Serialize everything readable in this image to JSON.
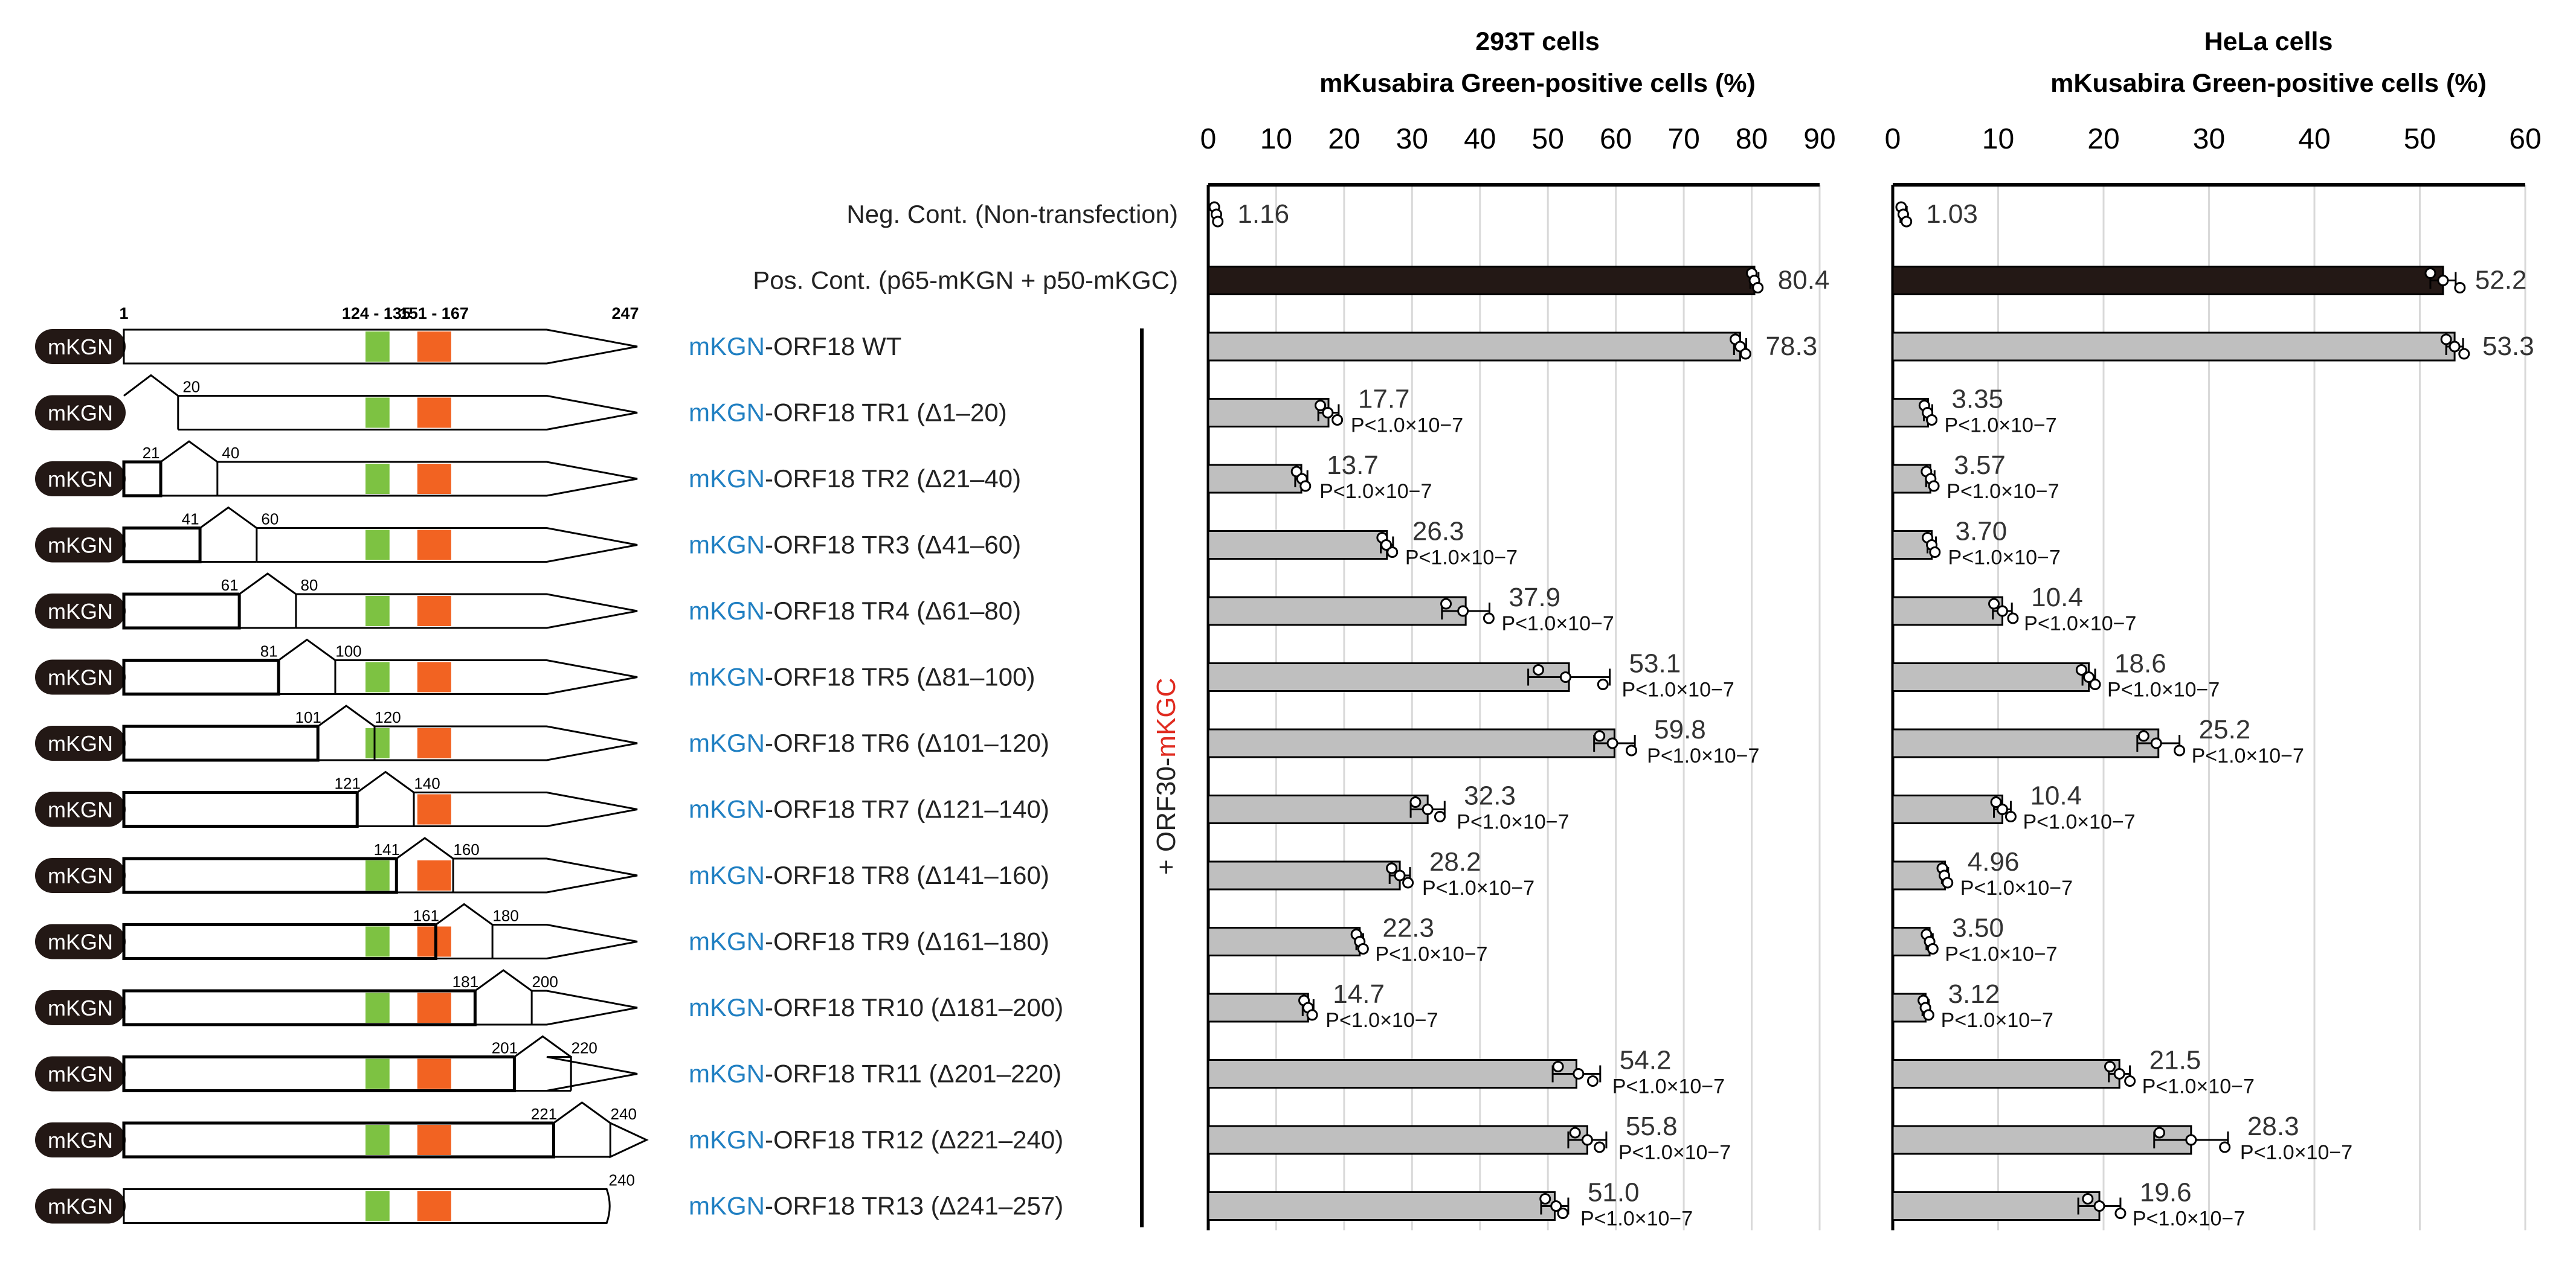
{
  "colors": {
    "construct_blue": "#1f7fc2",
    "mkgc_red": "#e02b20",
    "green_box": "#7dc242",
    "orange_box": "#f26322",
    "pos_bar": "#231815",
    "sample_bar": "#bfbfbf",
    "gridline": "#d9d9d9"
  },
  "row_labels": [
    "Neg. Cont. (Non-transfection)",
    "Pos. Cont. (p65-mKGN + p50-mKGC)"
  ],
  "constructs": [
    {
      "prefix": "mKGN",
      "suffix": "-ORF18 WT"
    },
    {
      "prefix": "mKGN",
      "suffix": "-ORF18 TR1 (Δ1–20)"
    },
    {
      "prefix": "mKGN",
      "suffix": "-ORF18 TR2 (Δ21–40)"
    },
    {
      "prefix": "mKGN",
      "suffix": "-ORF18 TR3 (Δ41–60)"
    },
    {
      "prefix": "mKGN",
      "suffix": "-ORF18 TR4 (Δ61–80)"
    },
    {
      "prefix": "mKGN",
      "suffix": "-ORF18 TR5 (Δ81–100)"
    },
    {
      "prefix": "mKGN",
      "suffix": "-ORF18 TR6 (Δ101–120)"
    },
    {
      "prefix": "mKGN",
      "suffix": "-ORF18 TR7 (Δ121–140)"
    },
    {
      "prefix": "mKGN",
      "suffix": "-ORF18 TR8 (Δ141–160)"
    },
    {
      "prefix": "mKGN",
      "suffix": "-ORF18 TR9 (Δ161–180)"
    },
    {
      "prefix": "mKGN",
      "suffix": "-ORF18 TR10 (Δ181–200)"
    },
    {
      "prefix": "mKGN",
      "suffix": "-ORF18 TR11 (Δ201–220)"
    },
    {
      "prefix": "mKGN",
      "suffix": "-ORF18 TR12 (Δ221–240)"
    },
    {
      "prefix": "mKGN",
      "suffix": "-ORF18 TR13 (Δ241–257)"
    }
  ],
  "cotransfection": {
    "prefix": "+ ORF30-",
    "suffix": "mKGC"
  },
  "schematic": {
    "tag_label": "mKGN",
    "wt_positions": {
      "start": "1",
      "green": "124 - 135",
      "orange": "151 - 167",
      "end": "247"
    },
    "deletions": [
      {
        "from": "",
        "to": "20"
      },
      {
        "from": "21",
        "to": "40"
      },
      {
        "from": "41",
        "to": "60"
      },
      {
        "from": "61",
        "to": "80"
      },
      {
        "from": "81",
        "to": "100"
      },
      {
        "from": "101",
        "to": "120"
      },
      {
        "from": "121",
        "to": "140"
      },
      {
        "from": "141",
        "to": "160"
      },
      {
        "from": "161",
        "to": "180"
      },
      {
        "from": "181",
        "to": "200"
      },
      {
        "from": "201",
        "to": "220"
      },
      {
        "from": "221",
        "to": "240"
      },
      {
        "from": "240",
        "to": ""
      }
    ]
  },
  "chart_data": [
    {
      "type": "bar",
      "orientation": "horizontal",
      "title": "293T cells",
      "subtitle": "mKusabira Green-positive cells (%)",
      "xlim": [
        0,
        90
      ],
      "ticks": [
        0,
        10,
        20,
        30,
        40,
        50,
        60,
        70,
        80,
        90
      ],
      "categories": [
        "Neg. Cont.",
        "Pos. Cont.",
        "WT",
        "TR1",
        "TR2",
        "TR3",
        "TR4",
        "TR5",
        "TR6",
        "TR7",
        "TR8",
        "TR9",
        "TR10",
        "TR11",
        "TR12",
        "TR13"
      ],
      "values": [
        1.16,
        80.4,
        78.3,
        17.7,
        13.7,
        26.3,
        37.9,
        53.1,
        59.8,
        32.3,
        28.2,
        22.3,
        14.7,
        54.2,
        55.8,
        51.0
      ],
      "value_labels": [
        "1.16",
        "80.4",
        "78.3",
        "17.7",
        "13.7",
        "26.3",
        "37.9",
        "53.1",
        "59.8",
        "32.3",
        "28.2",
        "22.3",
        "14.7",
        "54.2",
        "55.8",
        "51.0"
      ],
      "errors": [
        0.3,
        0.6,
        0.9,
        1.5,
        0.9,
        0.9,
        3.5,
        6.0,
        3.0,
        2.5,
        1.5,
        0.5,
        0.8,
        3.5,
        2.8,
        2.0
      ],
      "replicates": [
        [
          0.9,
          1.2,
          1.4
        ],
        [
          80.0,
          80.4,
          80.9
        ],
        [
          77.6,
          78.3,
          79.1
        ],
        [
          16.5,
          17.6,
          19.0
        ],
        [
          13.0,
          13.8,
          14.3
        ],
        [
          25.6,
          26.2,
          27.1
        ],
        [
          35.0,
          37.5,
          41.3
        ],
        [
          48.6,
          52.6,
          58.1
        ],
        [
          57.6,
          59.5,
          62.3
        ],
        [
          30.5,
          32.3,
          34.1
        ],
        [
          27.0,
          28.2,
          29.4
        ],
        [
          21.8,
          22.3,
          22.8
        ],
        [
          14.1,
          14.7,
          15.3
        ],
        [
          51.5,
          54.5,
          56.6
        ],
        [
          54.0,
          55.8,
          57.6
        ],
        [
          49.6,
          51.2,
          52.2
        ]
      ],
      "p_value_label": "P<1.0×10−7",
      "has_p_value": [
        false,
        false,
        false,
        true,
        true,
        true,
        true,
        true,
        true,
        true,
        true,
        true,
        true,
        true,
        true,
        true
      ]
    },
    {
      "type": "bar",
      "orientation": "horizontal",
      "title": "HeLa cells",
      "subtitle": "mKusabira Green-positive cells (%)",
      "xlim": [
        0,
        60
      ],
      "ticks": [
        0,
        10,
        20,
        30,
        40,
        50,
        60
      ],
      "categories": [
        "Neg. Cont.",
        "Pos. Cont.",
        "WT",
        "TR1",
        "TR2",
        "TR3",
        "TR4",
        "TR5",
        "TR6",
        "TR7",
        "TR8",
        "TR9",
        "TR10",
        "TR11",
        "TR12",
        "TR13"
      ],
      "values": [
        1.03,
        52.2,
        53.3,
        3.35,
        3.57,
        3.7,
        10.4,
        18.6,
        25.2,
        10.4,
        4.96,
        3.5,
        3.12,
        21.5,
        28.3,
        19.6
      ],
      "value_labels": [
        "1.03",
        "52.2",
        "53.3",
        "3.35",
        "3.57",
        "3.70",
        "10.4",
        "18.6",
        "25.2",
        "10.4",
        "4.96",
        "3.50",
        "3.12",
        "21.5",
        "28.3",
        "19.6"
      ],
      "errors": [
        0.3,
        1.2,
        0.8,
        0.4,
        0.4,
        0.4,
        0.9,
        0.6,
        2.0,
        0.8,
        0.3,
        0.3,
        0.3,
        1.0,
        3.5,
        2.0
      ],
      "replicates": [
        [
          0.8,
          1.0,
          1.3
        ],
        [
          51.0,
          52.2,
          53.8
        ],
        [
          52.5,
          53.3,
          54.2
        ],
        [
          3.0,
          3.3,
          3.7
        ],
        [
          3.2,
          3.6,
          3.9
        ],
        [
          3.3,
          3.7,
          4.0
        ],
        [
          9.6,
          10.4,
          11.4
        ],
        [
          17.9,
          18.6,
          19.2
        ],
        [
          23.8,
          25.0,
          27.2
        ],
        [
          9.8,
          10.4,
          11.2
        ],
        [
          4.7,
          4.9,
          5.2
        ],
        [
          3.2,
          3.5,
          3.8
        ],
        [
          2.9,
          3.1,
          3.4
        ],
        [
          20.6,
          21.5,
          22.5
        ],
        [
          25.3,
          28.3,
          31.5
        ],
        [
          18.5,
          19.6,
          21.6
        ]
      ],
      "p_value_label": "P<1.0×10−7",
      "has_p_value": [
        false,
        false,
        false,
        true,
        true,
        true,
        true,
        true,
        true,
        true,
        true,
        true,
        true,
        true,
        true,
        true
      ]
    }
  ]
}
